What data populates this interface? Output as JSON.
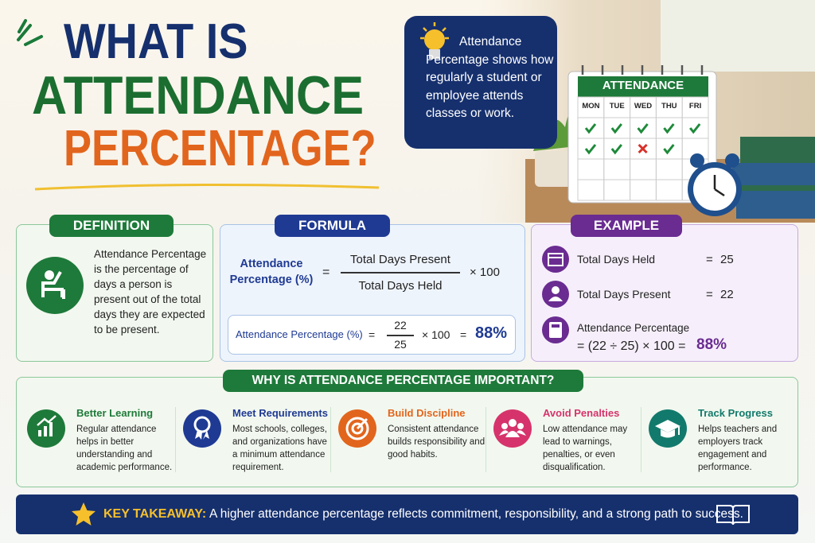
{
  "header": {
    "title": [
      "WHAT IS",
      "ATTENDANCE",
      "PERCENTAGE?"
    ]
  },
  "intro": "Attendance Percentage shows how regularly a student or employee attends classes or work.",
  "calendar": {
    "title": "ATTENDANCE",
    "days": [
      "MON",
      "TUE",
      "WED",
      "THU",
      "FRI"
    ]
  },
  "definition": {
    "title": "DEFINITION",
    "text": "Attendance Percentage is the percentage of days a person is present out of the total days they are expected to be present."
  },
  "formula": {
    "title": "FORMULA",
    "lhs": "Attendance Percentage (%)",
    "equals": "=",
    "numerator": "Total Days Present",
    "denominator": "Total Days Held",
    "multiplier": "× 100",
    "worked": {
      "lhs": "Attendance Percentage (%)",
      "equals": "=",
      "numerator": "22",
      "denominator": "25",
      "multiplier": "× 100",
      "equals2": "=",
      "result": "88%"
    }
  },
  "example": {
    "title": "EXAMPLE",
    "rows": [
      {
        "label": "Total Days Held",
        "equals": "=",
        "value": "25"
      },
      {
        "label": "Total Days Present",
        "equals": "=",
        "value": "22"
      }
    ],
    "calc": {
      "label": "Attendance Percentage",
      "expression": "= (22 ÷ 25) × 100 =",
      "result": "88%"
    }
  },
  "importance": {
    "title": "WHY IS ATTENDANCE PERCENTAGE IMPORTANT?",
    "items": [
      {
        "title": "Better Learning",
        "text": "Regular attendance helps in better understanding and academic performance."
      },
      {
        "title": "Meet Requirements",
        "text": "Most schools, colleges, and organizations have a minimum attendance requirement."
      },
      {
        "title": "Build Discipline",
        "text": "Consistent attendance builds responsibility and good habits."
      },
      {
        "title": "Avoid Penalties",
        "text": "Low attendance may lead to warnings, penalties, or even disqualification."
      },
      {
        "title": "Track Progress",
        "text": "Helps teachers and employers track engagement and performance."
      }
    ]
  },
  "takeaway": {
    "label": "KEY TAKEAWAY:",
    "text": "A higher attendance percentage reflects commitment, responsibility, and a strong path to success."
  }
}
